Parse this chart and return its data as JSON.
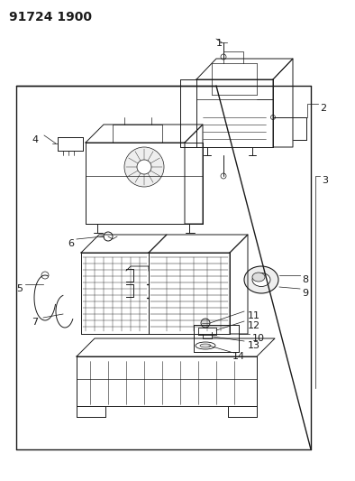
{
  "title": "91724 1900",
  "background_color": "#ffffff",
  "line_color": "#1a1a1a",
  "text_color": "#1a1a1a",
  "title_fontsize": 10,
  "label_fontsize": 8.5,
  "fig_width": 3.94,
  "fig_height": 5.33,
  "dpi": 100
}
